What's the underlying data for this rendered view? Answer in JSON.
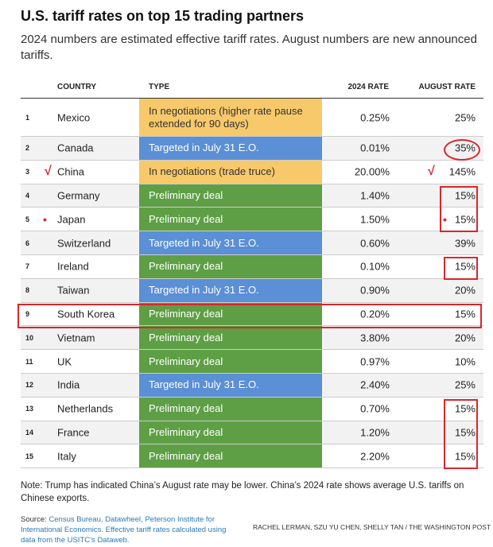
{
  "title": "U.S. tariff rates on top 15 trading partners",
  "subtitle": "2024 numbers are estimated effective tariff rates. August numbers are new announced tariffs.",
  "colors": {
    "in_negotiations": "#f7c96a",
    "targeted": "#5b8fd6",
    "preliminary": "#5e9f45",
    "annotation": "#d9262b"
  },
  "chart_data": {
    "type": "table",
    "columns": [
      "",
      "COUNTRY",
      "TYPE",
      "2024 RATE",
      "AUGUST RATE"
    ],
    "rows": [
      {
        "rank": "1",
        "country": "Mexico",
        "type": "In negotiations (higher rate pause extended for 90 days)",
        "kind": "in_negotiations",
        "rate_2024": "0.25%",
        "rate_aug": "25%"
      },
      {
        "rank": "2",
        "country": "Canada",
        "type": "Targeted in July 31 E.O.",
        "kind": "targeted",
        "rate_2024": "0.01%",
        "rate_aug": "35%"
      },
      {
        "rank": "3",
        "country": "China",
        "type": "In negotiations (trade truce)",
        "kind": "in_negotiations",
        "rate_2024": "20.00%",
        "rate_aug": "145%"
      },
      {
        "rank": "4",
        "country": "Germany",
        "type": "Preliminary deal",
        "kind": "preliminary",
        "rate_2024": "1.40%",
        "rate_aug": "15%"
      },
      {
        "rank": "5",
        "country": "Japan",
        "type": "Preliminary deal",
        "kind": "preliminary",
        "rate_2024": "1.50%",
        "rate_aug": "15%"
      },
      {
        "rank": "6",
        "country": "Switzerland",
        "type": "Targeted in July 31 E.O.",
        "kind": "targeted",
        "rate_2024": "0.60%",
        "rate_aug": "39%"
      },
      {
        "rank": "7",
        "country": "Ireland",
        "type": "Preliminary deal",
        "kind": "preliminary",
        "rate_2024": "0.10%",
        "rate_aug": "15%"
      },
      {
        "rank": "8",
        "country": "Taiwan",
        "type": "Targeted in July 31 E.O.",
        "kind": "targeted",
        "rate_2024": "0.90%",
        "rate_aug": "20%"
      },
      {
        "rank": "9",
        "country": "South Korea",
        "type": "Preliminary deal",
        "kind": "preliminary",
        "rate_2024": "0.20%",
        "rate_aug": "15%"
      },
      {
        "rank": "10",
        "country": "Vietnam",
        "type": "Preliminary deal",
        "kind": "preliminary",
        "rate_2024": "3.80%",
        "rate_aug": "20%"
      },
      {
        "rank": "11",
        "country": "UK",
        "type": "Preliminary deal",
        "kind": "preliminary",
        "rate_2024": "0.97%",
        "rate_aug": "10%"
      },
      {
        "rank": "12",
        "country": "India",
        "type": "Targeted in July 31 E.O.",
        "kind": "targeted",
        "rate_2024": "2.40%",
        "rate_aug": "25%"
      },
      {
        "rank": "13",
        "country": "Netherlands",
        "type": "Preliminary deal",
        "kind": "preliminary",
        "rate_2024": "0.70%",
        "rate_aug": "15%"
      },
      {
        "rank": "14",
        "country": "France",
        "type": "Preliminary deal",
        "kind": "preliminary",
        "rate_2024": "1.20%",
        "rate_aug": "15%"
      },
      {
        "rank": "15",
        "country": "Italy",
        "type": "Preliminary deal",
        "kind": "preliminary",
        "rate_2024": "2.20%",
        "rate_aug": "15%"
      }
    ]
  },
  "note": "Note: Trump has indicated China’s August rate may be lower. China’s 2024 rate shows average U.S. tariffs on Chinese exports.",
  "source_label": "Source: ",
  "source_text": "Census Bureau, Datawheel, Peterson Institute for International Economics. Effective tariff rates calculated using data from the USITC’s Dataweb.",
  "credit": "RACHEL LERMAN, SZU YU CHEN, SHELLY TAN / THE WASHINGTON POST",
  "annotation_marks": {
    "check": "√",
    "dot": "•"
  }
}
